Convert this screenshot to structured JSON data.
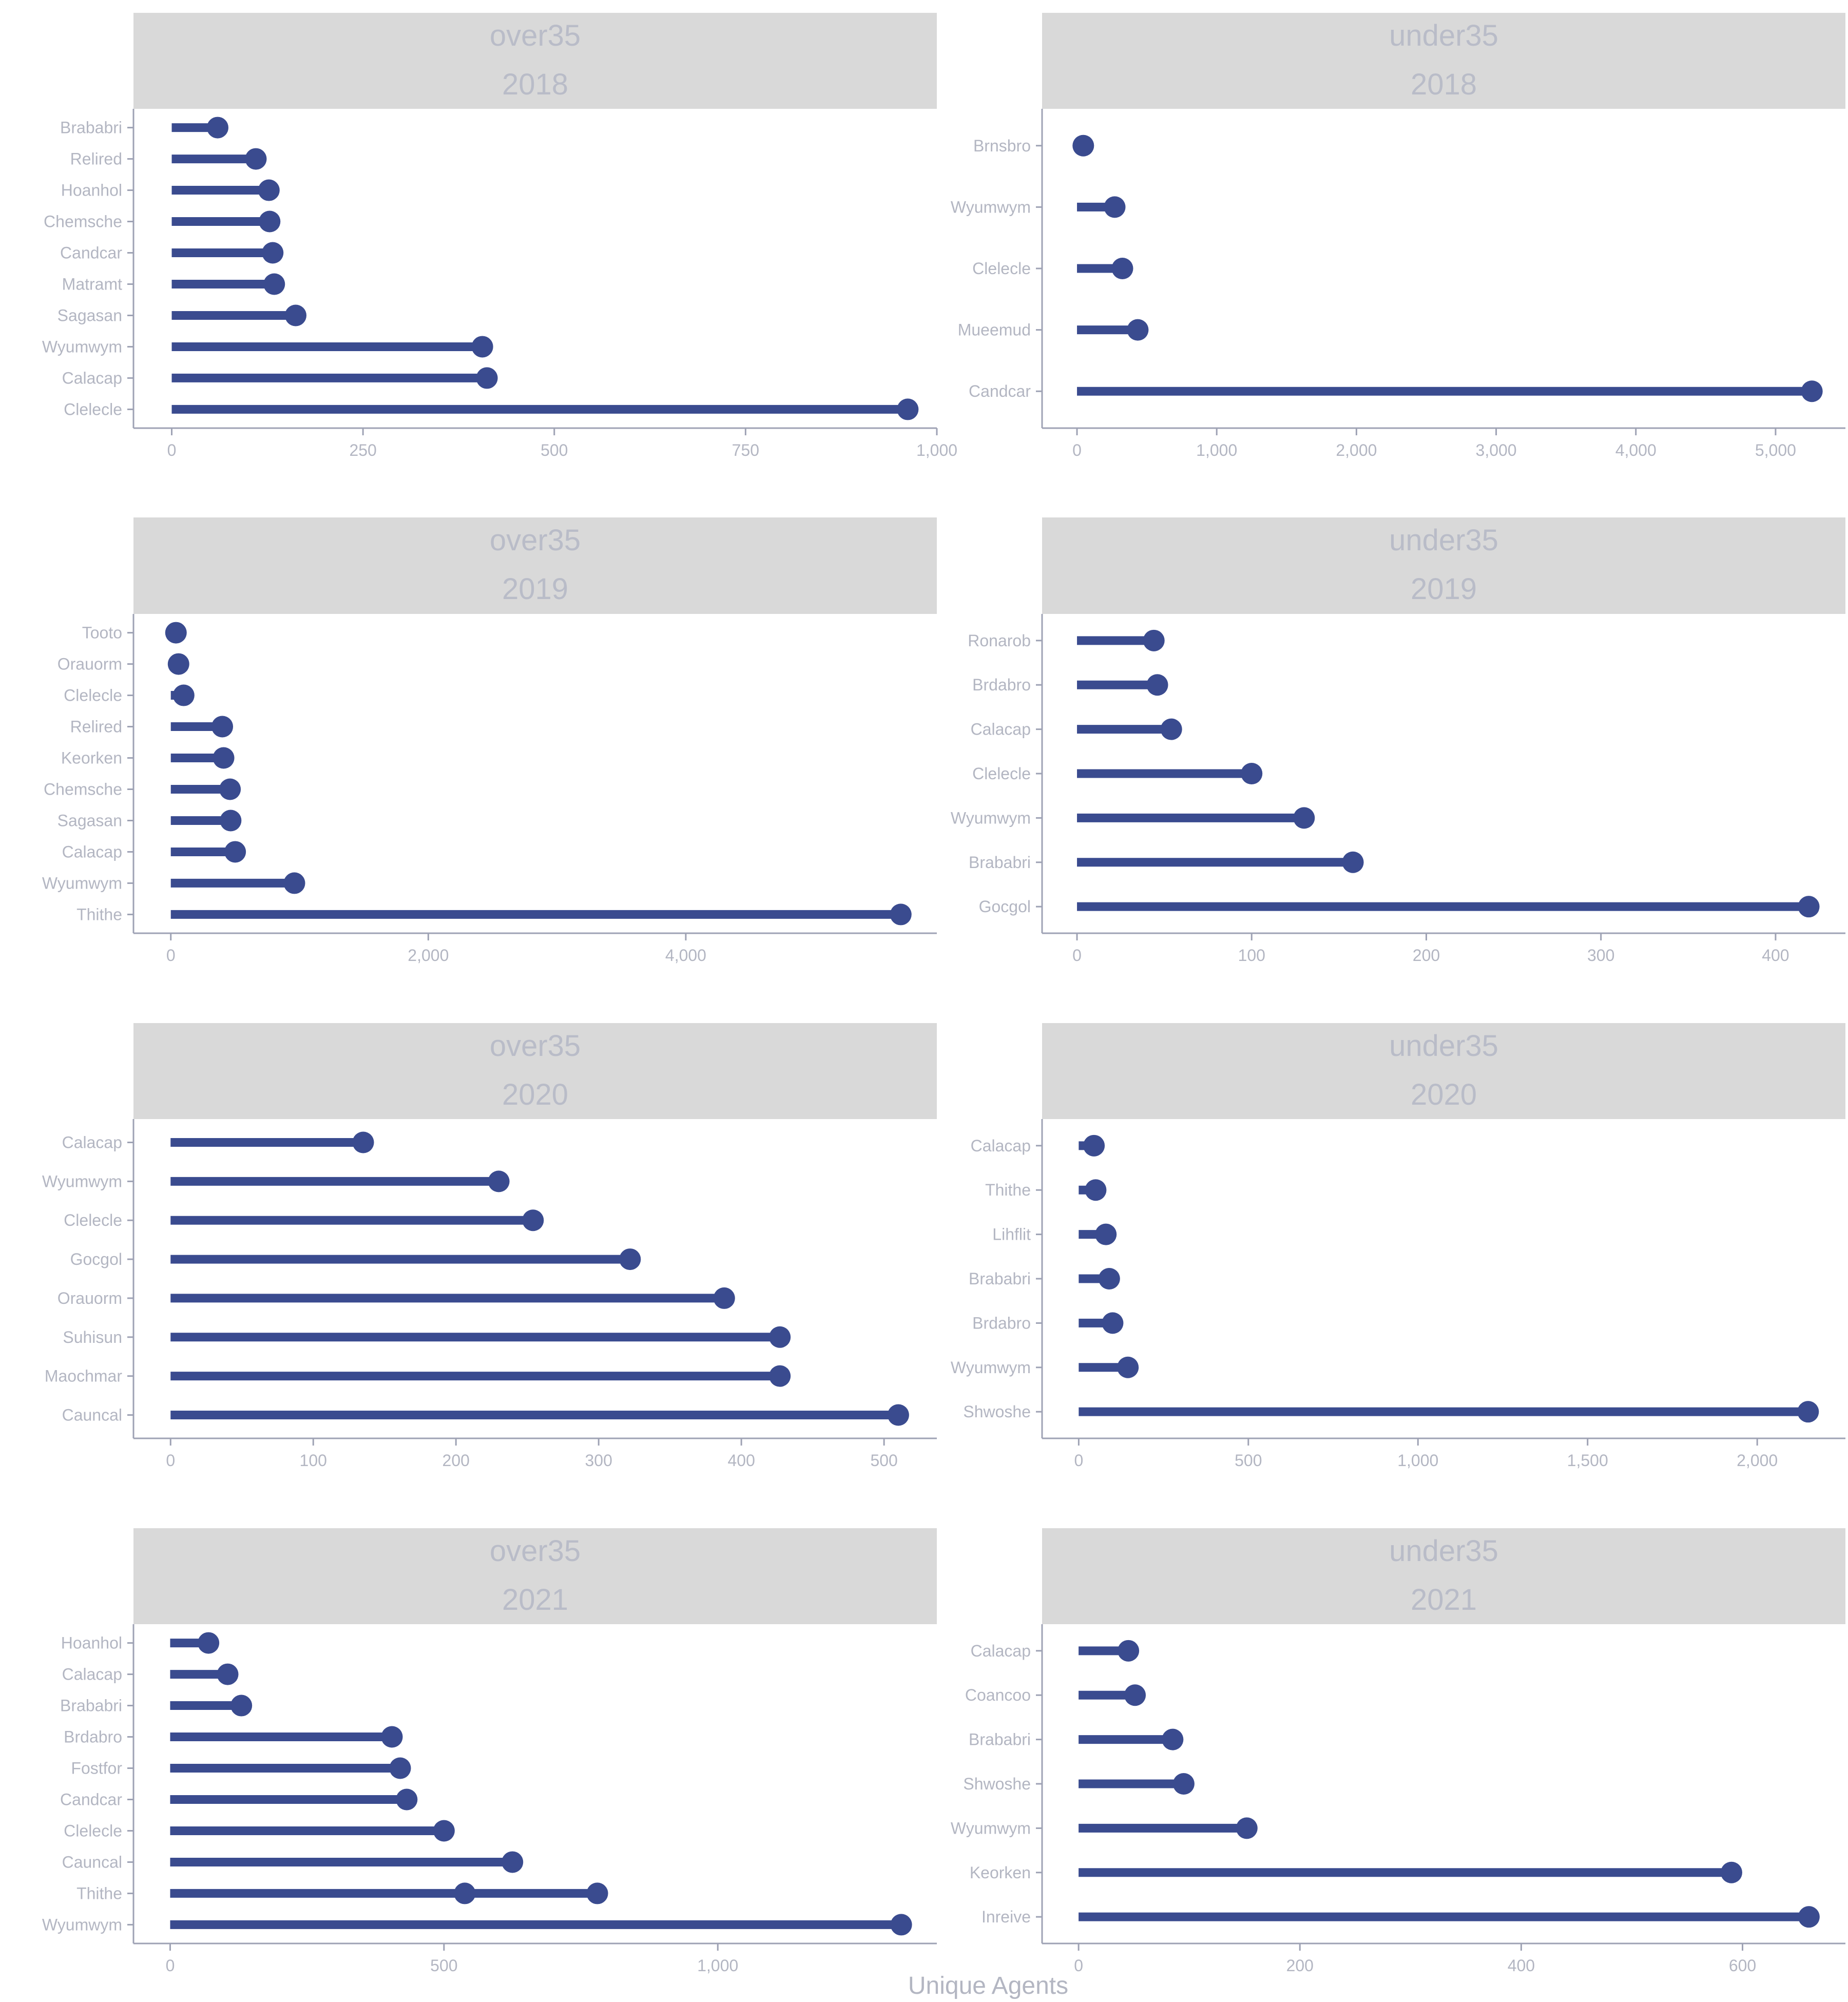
{
  "colors": {
    "lollipop": "#3a4b8f",
    "strip": "#d9d9d9",
    "strip_text": "#b9bcc8",
    "axis": "#9ea2b4",
    "tick_text": "#b3b6c2"
  },
  "xlabel": "Unique Agents",
  "chart_data": [
    {
      "type": "lollipop",
      "group": "over35",
      "year": "2018",
      "xlim": [
        -50,
        1000
      ],
      "xticks": [
        0,
        250,
        500,
        750,
        1000
      ],
      "xtick_labels": [
        "0",
        "250",
        "500",
        "750",
        "1,000"
      ],
      "categories": [
        "Brababri",
        "Relired",
        "Hoanhol",
        "Chemsche",
        "Candcar",
        "Matramt",
        "Sagasan",
        "Wyumwym",
        "Calacap",
        "Clelecle"
      ],
      "values": [
        60,
        110,
        127,
        128,
        132,
        134,
        162,
        406,
        412,
        962
      ]
    },
    {
      "type": "lollipop",
      "group": "under35",
      "year": "2018",
      "xlim": [
        -250,
        5500
      ],
      "xticks": [
        0,
        1000,
        2000,
        3000,
        4000,
        5000
      ],
      "xtick_labels": [
        "0",
        "1,000",
        "2,000",
        "3,000",
        "4,000",
        "5,000"
      ],
      "categories": [
        "Brnsbro",
        "Wyumwym",
        "Clelecle",
        "Mueemud",
        "Candcar"
      ],
      "values": [
        45,
        270,
        325,
        435,
        5260
      ]
    },
    {
      "type": "lollipop",
      "group": "over35",
      "year": "2019",
      "xlim": [
        -290,
        5950
      ],
      "xticks": [
        0,
        2000,
        4000
      ],
      "xtick_labels": [
        "0",
        "2,000",
        "4,000"
      ],
      "categories": [
        "Tooto",
        "Orauorm",
        "Clelecle",
        "Relired",
        "Keorken",
        "Chemsche",
        "Sagasan",
        "Calacap",
        "Wyumwym",
        "Thithe"
      ],
      "values": [
        40,
        60,
        100,
        400,
        410,
        460,
        465,
        500,
        960,
        5670
      ]
    },
    {
      "type": "lollipop",
      "group": "under35",
      "year": "2019",
      "xlim": [
        -20,
        440
      ],
      "xticks": [
        0,
        100,
        200,
        300,
        400
      ],
      "xtick_labels": [
        "0",
        "100",
        "200",
        "300",
        "400"
      ],
      "categories": [
        "Ronarob",
        "Brdabro",
        "Calacap",
        "Clelecle",
        "Wyumwym",
        "Brababri",
        "Gocgol"
      ],
      "values": [
        44,
        46,
        54,
        100,
        130,
        158,
        419
      ]
    },
    {
      "type": "lollipop",
      "group": "over35",
      "year": "2020",
      "xlim": [
        -26,
        537
      ],
      "xticks": [
        0,
        100,
        200,
        300,
        400,
        500
      ],
      "xtick_labels": [
        "0",
        "100",
        "200",
        "300",
        "400",
        "500"
      ],
      "categories": [
        "Calacap",
        "Wyumwym",
        "Clelecle",
        "Gocgol",
        "Orauorm",
        "Suhisun",
        "Maochmar",
        "Cauncal"
      ],
      "values": [
        135,
        230,
        254,
        322,
        388,
        427,
        427,
        510
      ]
    },
    {
      "type": "lollipop",
      "group": "under35",
      "year": "2020",
      "xlim": [
        -108,
        2260
      ],
      "xticks": [
        0,
        500,
        1000,
        1500,
        2000
      ],
      "xtick_labels": [
        "0",
        "500",
        "1,000",
        "1,500",
        "2,000"
      ],
      "categories": [
        "Calacap",
        "Thithe",
        "Lihflit",
        "Brababri",
        "Brdabro",
        "Wyumwym",
        "Shwoshe"
      ],
      "values": [
        45,
        50,
        80,
        90,
        100,
        145,
        2150
      ]
    },
    {
      "type": "lollipop",
      "group": "over35",
      "year": "2021",
      "xlim": [
        -67,
        1400
      ],
      "xticks": [
        0,
        500,
        1000
      ],
      "xtick_labels": [
        "0",
        "500",
        "1,000"
      ],
      "categories": [
        "Hoanhol",
        "Calacap",
        "Brababri",
        "Brdabro",
        "Fostfor",
        "Candcar",
        "Clelecle",
        "Cauncal",
        "Thithe",
        "Wyumwym"
      ],
      "values": [
        70,
        105,
        130,
        405,
        420,
        432,
        500,
        625,
        780,
        1335
      ],
      "extra_points": [
        {
          "category": "Thithe",
          "value": 538
        }
      ]
    },
    {
      "type": "lollipop",
      "group": "under35",
      "year": "2021",
      "xlim": [
        -33,
        693
      ],
      "xticks": [
        0,
        200,
        400,
        600
      ],
      "xtick_labels": [
        "0",
        "200",
        "400",
        "600"
      ],
      "categories": [
        "Calacap",
        "Coancoo",
        "Brababri",
        "Shwoshe",
        "Wyumwym",
        "Keorken",
        "Inreive"
      ],
      "values": [
        45,
        51,
        85,
        95,
        152,
        590,
        660
      ]
    }
  ]
}
